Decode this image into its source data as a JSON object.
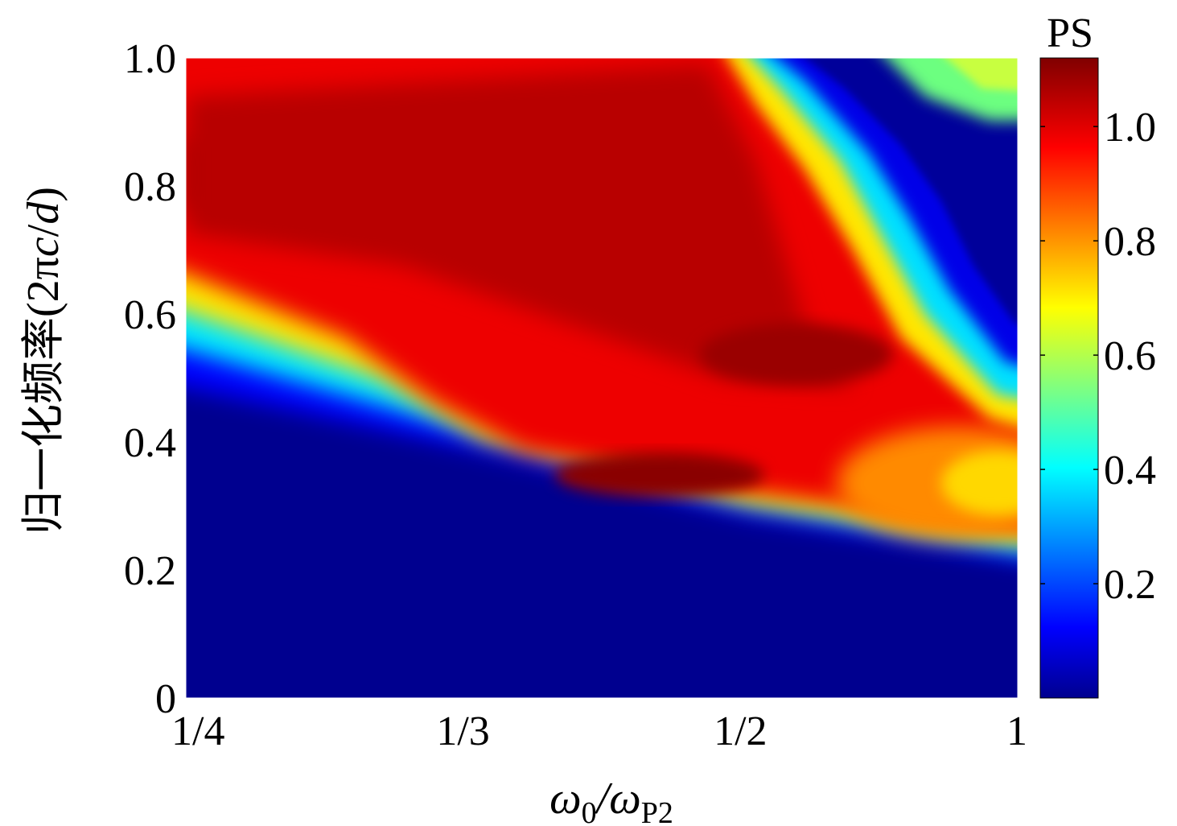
{
  "chart_data": {
    "type": "heatmap",
    "xlabel": {
      "main": "ω",
      "sub1": "0",
      "mid": "/ω",
      "sub2": "P2"
    },
    "ylabel": {
      "prefix": "归一化频率",
      "paren_open": "(2π",
      "var": "c",
      "slash": "/",
      "var2": "d",
      "paren_close": ")"
    },
    "x_ticks": [
      "1/4",
      "1/3",
      "1/2",
      "1"
    ],
    "x_tick_values": [
      0.25,
      0.3333,
      0.5,
      1.0
    ],
    "x_scale": "reciprocal",
    "y_ticks": [
      "0",
      "0.2",
      "0.4",
      "0.6",
      "0.8",
      "1.0"
    ],
    "y_tick_values": [
      0,
      0.2,
      0.4,
      0.6,
      0.8,
      1.0
    ],
    "ylim": [
      0,
      1.0
    ],
    "colorbar": {
      "label": "PS",
      "ticks": [
        "0.2",
        "0.4",
        "0.6",
        "0.8",
        "1.0"
      ],
      "tick_values": [
        0.2,
        0.4,
        0.6,
        0.8,
        1.0
      ],
      "range": [
        0,
        1.12
      ],
      "colormap": "jet"
    },
    "bands": [
      {
        "name": "lower transmission band",
        "value": 0.95,
        "lower_edge": [
          [
            0.25,
            0.55
          ],
          [
            0.3333,
            0.42
          ],
          [
            0.5,
            0.32
          ],
          [
            1.0,
            0.22
          ]
        ],
        "upper_edge": [
          [
            0.25,
            1.0
          ],
          [
            0.3333,
            1.0
          ],
          [
            0.5,
            1.0
          ],
          [
            1.0,
            1.0
          ]
        ]
      },
      {
        "name": "peak maximum region",
        "value": 1.1,
        "points": [
          [
            0.3,
            0.78
          ],
          [
            0.45,
            0.35
          ],
          [
            0.62,
            0.52
          ]
        ]
      },
      {
        "name": "upper stop band",
        "value": 0.05,
        "edge": [
          [
            0.5,
            1.0
          ],
          [
            0.62,
            0.78
          ],
          [
            1.0,
            0.42
          ]
        ]
      }
    ]
  }
}
